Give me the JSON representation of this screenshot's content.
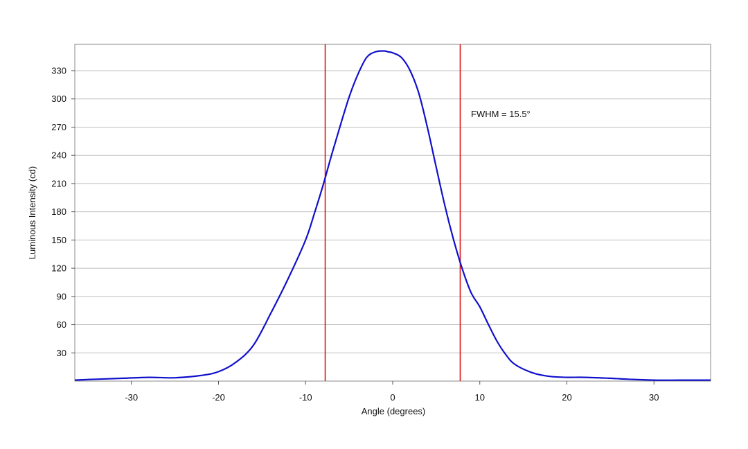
{
  "chart_data": {
    "type": "line",
    "xlabel": "Angle (degrees)",
    "ylabel": "Luminous Intensity (cd)",
    "xlim": [
      -36.5,
      36.5
    ],
    "ylim": [
      0,
      358
    ],
    "xticks": [
      -30,
      -20,
      -10,
      0,
      10,
      20,
      30
    ],
    "yticks": [
      30,
      60,
      90,
      120,
      150,
      180,
      210,
      240,
      270,
      300,
      330
    ],
    "grid": "horizontal",
    "legend": "none",
    "colors": {
      "curve": "#1010cc",
      "markers": "#dd1111",
      "grid": "#c0c0c0",
      "frame": "#888888"
    },
    "series": [
      {
        "x": [
          -36.5,
          -34,
          -31,
          -28,
          -25,
          -22,
          -20,
          -18,
          -16,
          -14,
          -12,
          -10,
          -9,
          -8,
          -7,
          -6,
          -5,
          -4,
          -3,
          -2,
          -1,
          -0.5,
          0,
          1,
          2,
          3,
          4,
          5,
          6,
          7,
          8,
          9,
          10,
          11,
          12,
          13,
          14,
          16,
          18,
          20,
          22,
          25,
          27,
          30,
          33,
          36.5
        ],
        "y": [
          1,
          2,
          3,
          4,
          3.5,
          6,
          10,
          20,
          38,
          72,
          109,
          150,
          178,
          208,
          241,
          272,
          302,
          326,
          344,
          350,
          351,
          350,
          349,
          344,
          330,
          306,
          269,
          227,
          186,
          150,
          119,
          94,
          79,
          60,
          42,
          28,
          18,
          9,
          5,
          4,
          4,
          3,
          2,
          1,
          1,
          1
        ]
      }
    ],
    "vlines": [
      -7.75,
      7.75
    ],
    "annotation": "FWHM = 15.5°"
  }
}
